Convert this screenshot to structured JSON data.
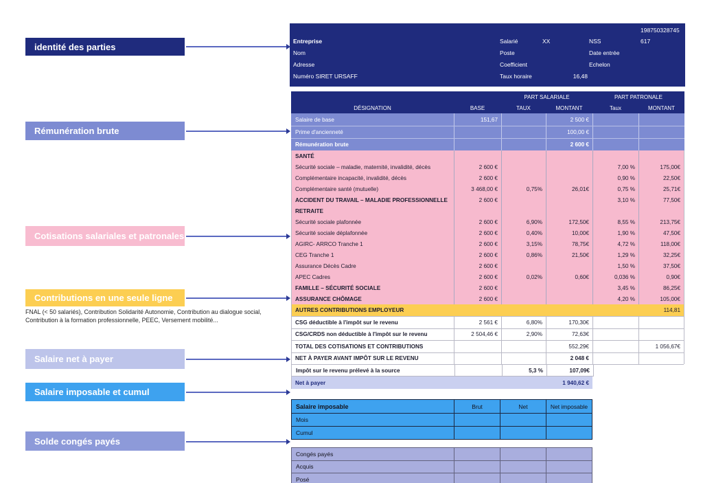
{
  "colors": {
    "navy": "#1f2b7d",
    "periwinkle": "#7d8bd2",
    "pink": "#f7bace",
    "yellow": "#fcce52",
    "net_row": "#cad0f0",
    "bright_blue": "#3ea2ef",
    "leave_row": "#a9aede",
    "arrow": "#5a68c0",
    "arrow_head": "#2c3a96",
    "table_border": "#b9b9c6"
  },
  "annotations": [
    {
      "label": "identité des parties",
      "color": "#1f2b7d"
    },
    {
      "label": "Rémunération brute",
      "color": "#7d8bd2"
    },
    {
      "label": "Cotisations salariales et patronales",
      "color": "#f8bcd0"
    },
    {
      "label": "Contributions en une seule ligne",
      "color": "#fcce52"
    },
    {
      "label": "Salaire net à payer",
      "color": "#bdc4ea"
    },
    {
      "label": "Salaire imposable et cumul",
      "color": "#3ea2ef"
    },
    {
      "label": "Solde congés payés",
      "color": "#8d9ad9"
    }
  ],
  "note": "FNAL (< 50 salariés), Contribution Solidarité Autonomie, Contribution au dialogue social, Contribution à la formation professionnelle, PEEC, Versement mobilité...",
  "company_header": {
    "nss_number": "198750328745",
    "rows": [
      {
        "a": "Entreprise",
        "b": "Salarié",
        "c": "XX",
        "d": "NSS",
        "e": "617",
        "a_bold": true
      },
      {
        "a": "Nom",
        "b": "Poste",
        "c": "",
        "d": "Date entrée",
        "e": ""
      },
      {
        "a": "Adresse",
        "b": "Coefficient",
        "c": "",
        "d": "Echelon",
        "e": ""
      },
      {
        "a": "Numéro SIRET URSAFF",
        "b": "Taux horaire",
        "c": "16,48",
        "d": "",
        "e": "",
        "c_right": true
      }
    ]
  },
  "payslip": {
    "header": {
      "part_salariale": "PART SALARIALE",
      "part_patronale": "PART PATRONALE",
      "designation": "DÉSIGNATION",
      "base": "BASE",
      "taux_sal": "TAUX",
      "montant_sal": "MONTANT",
      "taux_pat": "Taux",
      "montant_pat": "MONTANT"
    },
    "rows": [
      {
        "label": "Salaire de base",
        "base": "151,67",
        "montant_sal": "2 500 €",
        "variant": "blue"
      },
      {
        "label": "Prime d'ancienneté",
        "montant_sal": "100,00 €",
        "variant": "blue"
      },
      {
        "label": "Rémunération brute",
        "montant_sal": "2 600 €",
        "variant": "blue",
        "bold": true,
        "vbold": true
      },
      {
        "label": "SANTÉ",
        "variant": "pink",
        "bold": true
      },
      {
        "label": "Sécurité sociale – maladie, maternité, invalidité, décès",
        "base": "2 600 €",
        "taux_pat": "7,00 %",
        "montant_pat": "175,00€",
        "variant": "pink"
      },
      {
        "label": "Complémentaire incapacité, invalidité, décès",
        "base": "2 600 €",
        "taux_pat": "0,90 %",
        "montant_pat": "22,50€",
        "variant": "pink"
      },
      {
        "label": "Complémentaire santé (mutuelle)",
        "base": "3 468,00 €",
        "taux_sal": "0,75%",
        "montant_sal": "26,01€",
        "taux_pat": "0,75 %",
        "montant_pat": "25,71€",
        "variant": "pink"
      },
      {
        "label": "ACCIDENT DU TRAVAIL – MALADIE PROFESSIONNELLE",
        "base": "2 600 €",
        "taux_pat": "3,10 %",
        "montant_pat": "77,50€",
        "variant": "pink",
        "bold": true
      },
      {
        "label": "RETRAITE",
        "variant": "pink",
        "bold": true
      },
      {
        "label": "Sécurité sociale plafonnée",
        "base": "2 600 €",
        "taux_sal": "6,90%",
        "montant_sal": "172,50€",
        "taux_pat": "8,55 %",
        "montant_pat": "213,75€",
        "variant": "pink"
      },
      {
        "label": "Sécurité sociale déplafonnée",
        "base": "2 600 €",
        "taux_sal": "0,40%",
        "montant_sal": "10,00€",
        "taux_pat": "1,90 %",
        "montant_pat": "47,50€",
        "variant": "pink"
      },
      {
        "label": "AGIRC- ARRCO Tranche 1",
        "base": "2 600 €",
        "taux_sal": "3,15%",
        "montant_sal": "78,75€",
        "taux_pat": "4,72 %",
        "montant_pat": "118,00€",
        "variant": "pink"
      },
      {
        "label": "CEG Tranche 1",
        "base": "2 600 €",
        "taux_sal": "0,86%",
        "montant_sal": "21,50€",
        "taux_pat": "1,29 %",
        "montant_pat": "32,25€",
        "variant": "pink"
      },
      {
        "label": "Assurance Décès Cadre",
        "base": "2 600 €",
        "taux_pat": "1,50 %",
        "montant_pat": "37,50€",
        "variant": "pink"
      },
      {
        "label": "APEC Cadres",
        "base": "2 600 €",
        "taux_sal": "0,02%",
        "montant_sal": "0,60€",
        "taux_pat": "0,036 %",
        "montant_pat": "0,90€",
        "variant": "pink"
      },
      {
        "label": "FAMILLE – SÉCURITÉ SOCIALE",
        "base": "2 600 €",
        "taux_pat": "3,45 %",
        "montant_pat": "86,25€",
        "variant": "pink",
        "bold": true
      },
      {
        "label": "ASSURANCE CHÔMAGE",
        "base": "2 600 €",
        "taux_pat": "4,20 %",
        "montant_pat": "105,00€",
        "variant": "pink",
        "bold": true
      },
      {
        "label": "AUTRES CONTRIBUTIONS EMPLOYEUR",
        "montant_pat": "114,81",
        "variant": "yellow",
        "bold": true
      },
      {
        "label": "CSG déductible à l'impôt sur le revenu",
        "base": "2 561 €",
        "taux_sal": "6,80%",
        "montant_sal": "170,30€",
        "variant": "white",
        "bold": true
      },
      {
        "label": "CSG/CRDS non déductible à l'impôt sur le revenu",
        "base": "2 504,46 €",
        "taux_sal": "2,90%",
        "montant_sal": "72,63€",
        "variant": "white",
        "bold": true
      },
      {
        "label": "TOTAL DES COTISATIONS ET CONTRIBUTIONS",
        "montant_sal": "552,29€",
        "montant_pat": "1 056,67€",
        "variant": "white",
        "bold": true
      },
      {
        "label": "NET À PAYER AVANT IMPÔT SUR LE REVENU",
        "montant_sal": "2 048 €",
        "variant": "white",
        "bold": true,
        "vbold": true
      },
      {
        "label": "Impôt sur le revenu prélevé à la source",
        "taux_sal": "5,3 %",
        "montant_sal": "107,09€",
        "variant": "impot",
        "bold": true,
        "vbold": true
      },
      {
        "label": "Net à payer",
        "montant_sal": "1 940,62 €",
        "variant": "net",
        "bold": true,
        "vbold": true
      }
    ]
  },
  "taxable_table": {
    "title": "Salaire imposable",
    "columns": [
      "Brut",
      "Net",
      "Net imposable"
    ],
    "rows": [
      "Mois",
      "Cumul"
    ]
  },
  "leave_table": {
    "title": "Congés payés",
    "rows": [
      "Acquis",
      "Posé"
    ]
  }
}
